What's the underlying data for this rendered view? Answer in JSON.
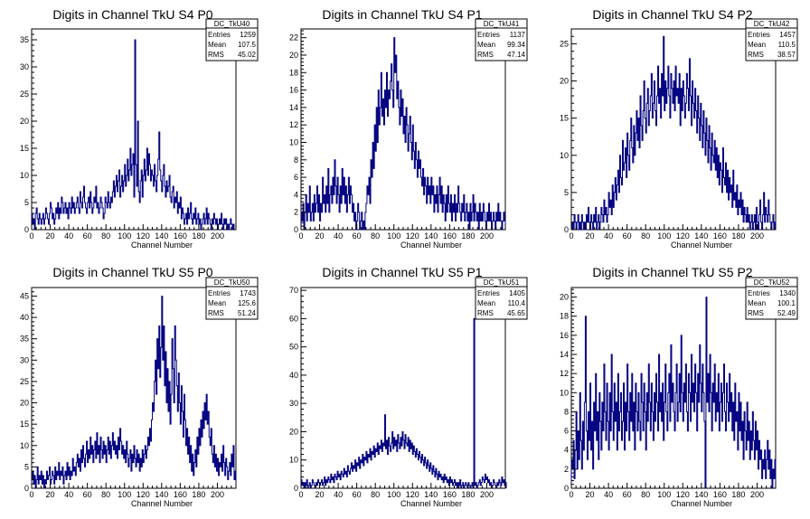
{
  "canvas_background": "#ffffff",
  "hist_color": "#000080",
  "chart_data": [
    {
      "type": "bar",
      "title": "Digits in Channel TkU S4 P0",
      "xlabel": "Channel Number",
      "xlim": [
        0,
        220
      ],
      "ylim": [
        0,
        37
      ],
      "xticks": [
        0,
        20,
        40,
        60,
        80,
        100,
        120,
        140,
        160,
        180,
        200
      ],
      "yticks": [
        0,
        5,
        10,
        15,
        20,
        25,
        30,
        35
      ],
      "stats": {
        "name": "DC_TkU40",
        "entries_label": "Entries",
        "entries": "1259",
        "mean_label": "Mean",
        "mean": "107.5",
        "rms_label": "RMS",
        "rms": "45.02"
      },
      "bin_width": 1,
      "values": [
        3,
        1,
        2,
        0,
        3,
        4,
        2,
        1,
        3,
        2,
        1,
        2,
        3,
        1,
        2,
        4,
        3,
        2,
        1,
        3,
        5,
        4,
        2,
        3,
        1,
        2,
        4,
        3,
        5,
        2,
        4,
        3,
        6,
        5,
        3,
        4,
        5,
        3,
        4,
        2,
        5,
        4,
        3,
        6,
        4,
        5,
        3,
        4,
        5,
        6,
        4,
        3,
        7,
        5,
        4,
        6,
        8,
        5,
        4,
        3,
        5,
        6,
        4,
        7,
        5,
        3,
        4,
        6,
        5,
        8,
        4,
        5,
        3,
        4,
        6,
        5,
        4,
        2,
        3,
        6,
        5,
        4,
        7,
        5,
        4,
        6,
        5,
        7,
        9,
        6,
        8,
        10,
        7,
        9,
        11,
        6,
        8,
        10,
        7,
        9,
        12,
        8,
        10,
        13,
        9,
        11,
        15,
        10,
        12,
        14,
        6,
        35,
        12,
        8,
        20,
        7,
        5,
        9,
        11,
        6,
        10,
        13,
        9,
        11,
        15,
        10,
        14,
        12,
        9,
        11,
        10,
        8,
        12,
        9,
        7,
        10,
        13,
        18,
        11,
        9,
        7,
        10,
        12,
        8,
        6,
        9,
        7,
        8,
        10,
        6,
        5,
        7,
        8,
        4,
        6,
        5,
        7,
        3,
        5,
        4,
        6,
        2,
        4,
        3,
        1,
        2,
        3,
        1,
        4,
        2,
        3,
        5,
        2,
        1,
        3,
        2,
        4,
        1,
        2,
        3,
        1,
        2,
        0,
        1,
        2,
        3,
        1,
        2,
        4,
        1,
        3,
        2,
        1,
        0,
        2,
        1,
        3,
        2,
        1,
        2,
        0,
        1,
        2,
        1,
        3,
        1,
        0,
        2,
        1,
        2,
        0,
        1,
        0,
        1,
        2,
        1,
        0,
        1
      ]
    },
    {
      "type": "bar",
      "title": "Digits in Channel TkU S4 P1",
      "xlabel": "Channel Number",
      "xlim": [
        0,
        220
      ],
      "ylim": [
        0,
        23
      ],
      "xticks": [
        0,
        20,
        40,
        60,
        80,
        100,
        120,
        140,
        160,
        180,
        200
      ],
      "yticks": [
        0,
        2,
        4,
        6,
        8,
        10,
        12,
        14,
        16,
        18,
        20,
        22
      ],
      "stats": {
        "name": "DC_TkU41",
        "entries_label": "Entries",
        "entries": "1137",
        "mean_label": "Mean",
        "mean": "99.34",
        "rms_label": "RMS",
        "rms": "47.14"
      },
      "bin_width": 1,
      "values": [
        2,
        1,
        3,
        0,
        2,
        4,
        1,
        3,
        2,
        5,
        1,
        2,
        3,
        1,
        4,
        2,
        3,
        5,
        2,
        4,
        1,
        3,
        2,
        6,
        3,
        4,
        2,
        5,
        3,
        7,
        2,
        4,
        5,
        3,
        6,
        4,
        8,
        5,
        3,
        6,
        4,
        2,
        5,
        3,
        7,
        4,
        6,
        3,
        5,
        2,
        4,
        6,
        3,
        5,
        4,
        2,
        3,
        1,
        2,
        0,
        1,
        3,
        2,
        0,
        1,
        2,
        0,
        1,
        0,
        2,
        3,
        5,
        4,
        6,
        3,
        8,
        6,
        10,
        7,
        12,
        9,
        14,
        10,
        16,
        12,
        14,
        18,
        13,
        15,
        12,
        16,
        14,
        18,
        13,
        16,
        15,
        17,
        19,
        16,
        14,
        22,
        18,
        20,
        15,
        17,
        14,
        12,
        16,
        13,
        15,
        11,
        13,
        10,
        14,
        12,
        9,
        11,
        13,
        10,
        8,
        12,
        9,
        7,
        10,
        8,
        6,
        9,
        7,
        8,
        6,
        5,
        7,
        4,
        6,
        5,
        3,
        6,
        4,
        5,
        3,
        6,
        4,
        5,
        2,
        4,
        3,
        5,
        2,
        4,
        6,
        3,
        5,
        2,
        4,
        3,
        1,
        4,
        2,
        5,
        3,
        2,
        4,
        1,
        3,
        2,
        4,
        1,
        3,
        2,
        5,
        3,
        2,
        1,
        3,
        2,
        4,
        1,
        2,
        3,
        1,
        2,
        0,
        3,
        1,
        2,
        4,
        1,
        3,
        2,
        1,
        2,
        0,
        3,
        1,
        2,
        1,
        3,
        2,
        1,
        0,
        2,
        1,
        3,
        1,
        2,
        0,
        1,
        2,
        1,
        0,
        2,
        1,
        3,
        1,
        2,
        1,
        0,
        1,
        2,
        1
      ]
    },
    {
      "type": "bar",
      "title": "Digits in Channel TkU S4 P2",
      "xlabel": "Channel Number",
      "xlim": [
        0,
        220
      ],
      "ylim": [
        0,
        27
      ],
      "xticks": [
        0,
        20,
        40,
        60,
        80,
        100,
        120,
        140,
        160,
        180,
        200
      ],
      "yticks": [
        0,
        5,
        10,
        15,
        20,
        25
      ],
      "stats": {
        "name": "DC_TkU42",
        "entries_label": "Entries",
        "entries": "1457",
        "mean_label": "Mean",
        "mean": "110.5",
        "rms_label": "RMS",
        "rms": "38.57"
      },
      "bin_width": 1,
      "values": [
        0,
        1,
        0,
        2,
        1,
        0,
        1,
        2,
        0,
        1,
        0,
        2,
        1,
        0,
        1,
        0,
        2,
        1,
        3,
        1,
        0,
        2,
        1,
        0,
        2,
        1,
        3,
        0,
        1,
        2,
        0,
        1,
        3,
        2,
        1,
        4,
        2,
        3,
        1,
        2,
        5,
        3,
        4,
        2,
        6,
        3,
        5,
        7,
        4,
        6,
        8,
        5,
        10,
        7,
        6,
        12,
        8,
        9,
        11,
        7,
        13,
        10,
        8,
        12,
        15,
        11,
        9,
        14,
        10,
        13,
        16,
        12,
        15,
        11,
        18,
        14,
        12,
        16,
        20,
        15,
        13,
        17,
        19,
        14,
        16,
        18,
        21,
        15,
        17,
        20,
        16,
        14,
        18,
        22,
        17,
        19,
        15,
        21,
        18,
        26,
        16,
        20,
        17,
        19,
        22,
        18,
        15,
        21,
        19,
        17,
        20,
        16,
        22,
        18,
        19,
        17,
        21,
        14,
        19,
        16,
        20,
        18,
        15,
        17,
        21,
        19,
        16,
        23,
        18,
        14,
        20,
        17,
        15,
        19,
        16,
        13,
        18,
        15,
        12,
        17,
        14,
        11,
        16,
        13,
        10,
        15,
        12,
        9,
        14,
        11,
        8,
        13,
        10,
        9,
        12,
        8,
        11,
        7,
        10,
        6,
        9,
        8,
        5,
        11,
        7,
        6,
        9,
        5,
        8,
        4,
        7,
        5,
        6,
        3,
        8,
        4,
        5,
        3,
        6,
        2,
        4,
        3,
        5,
        2,
        4,
        1,
        3,
        2,
        1,
        3,
        1,
        2,
        0,
        1,
        2,
        0,
        1,
        2,
        0,
        3,
        1,
        0,
        2,
        4,
        1,
        0,
        2,
        5,
        1,
        3,
        2,
        1,
        4,
        2,
        1,
        0,
        1,
        2,
        0,
        1
      ]
    },
    {
      "type": "bar",
      "title": "Digits in Channel TkU S5 P0",
      "xlabel": "Channel Number",
      "xlim": [
        0,
        220
      ],
      "ylim": [
        0,
        47
      ],
      "xticks": [
        0,
        20,
        40,
        60,
        80,
        100,
        120,
        140,
        160,
        180,
        200
      ],
      "yticks": [
        0,
        5,
        10,
        15,
        20,
        25,
        30,
        35,
        40,
        45
      ],
      "stats": {
        "name": "DC_TkU50",
        "entries_label": "Entries",
        "entries": "1743",
        "mean_label": "Mean",
        "mean": "125.6",
        "rms_label": "RMS",
        "rms": "51.24"
      },
      "bin_width": 1,
      "values": [
        2,
        4,
        1,
        3,
        0,
        2,
        5,
        1,
        3,
        2,
        4,
        1,
        3,
        0,
        2,
        1,
        4,
        2,
        3,
        5,
        1,
        2,
        4,
        3,
        1,
        5,
        2,
        4,
        3,
        6,
        2,
        4,
        3,
        5,
        1,
        3,
        4,
        2,
        6,
        3,
        5,
        2,
        4,
        3,
        7,
        4,
        5,
        3,
        6,
        8,
        5,
        7,
        4,
        9,
        6,
        10,
        7,
        5,
        8,
        11,
        6,
        9,
        7,
        12,
        8,
        10,
        6,
        9,
        11,
        7,
        13,
        8,
        10,
        6,
        12,
        9,
        7,
        11,
        8,
        10,
        6,
        9,
        12,
        8,
        11,
        7,
        10,
        13,
        9,
        11,
        8,
        10,
        7,
        12,
        9,
        14,
        11,
        8,
        10,
        7,
        9,
        6,
        11,
        8,
        5,
        7,
        9,
        4,
        8,
        6,
        10,
        7,
        5,
        9,
        6,
        8,
        4,
        7,
        5,
        9,
        6,
        8,
        10,
        7,
        9,
        12,
        10,
        14,
        11,
        16,
        20,
        18,
        25,
        30,
        22,
        35,
        28,
        38,
        26,
        33,
        45,
        30,
        38,
        24,
        32,
        20,
        28,
        18,
        25,
        15,
        22,
        35,
        28,
        20,
        38,
        30,
        24,
        18,
        27,
        20,
        15,
        24,
        18,
        12,
        22,
        16,
        10,
        14,
        8,
        12,
        6,
        10,
        4,
        8,
        3,
        6,
        9,
        5,
        12,
        8,
        14,
        10,
        16,
        12,
        18,
        14,
        20,
        16,
        22,
        15,
        18,
        12,
        10,
        14,
        8,
        6,
        10,
        5,
        8,
        4,
        7,
        3,
        6,
        5,
        8,
        4,
        10,
        6,
        3,
        7,
        5,
        2,
        4,
        6,
        3,
        8,
        5,
        10,
        2,
        4
      ]
    },
    {
      "type": "bar",
      "title": "Digits in Channel TkU S5 P1",
      "xlabel": "Channel Number",
      "xlim": [
        0,
        220
      ],
      "ylim": [
        0,
        71
      ],
      "xticks": [
        0,
        20,
        40,
        60,
        80,
        100,
        120,
        140,
        160,
        180,
        200
      ],
      "yticks": [
        0,
        10,
        20,
        30,
        40,
        50,
        60,
        70
      ],
      "stats": {
        "name": "DC_TkU51",
        "entries_label": "Entries",
        "entries": "1405",
        "mean_label": "Mean",
        "mean": "110.4",
        "rms_label": "RMS",
        "rms": "45.65"
      },
      "bin_width": 1,
      "values": [
        3,
        1,
        2,
        0,
        2,
        1,
        3,
        0,
        1,
        2,
        0,
        1,
        3,
        2,
        1,
        0,
        2,
        1,
        3,
        2,
        1,
        2,
        3,
        1,
        2,
        4,
        1,
        3,
        2,
        4,
        3,
        2,
        5,
        3,
        4,
        2,
        5,
        4,
        3,
        6,
        4,
        5,
        3,
        6,
        5,
        4,
        7,
        5,
        6,
        4,
        8,
        6,
        5,
        7,
        9,
        6,
        8,
        7,
        10,
        6,
        9,
        8,
        11,
        7,
        10,
        9,
        12,
        8,
        11,
        10,
        13,
        9,
        12,
        11,
        14,
        10,
        13,
        12,
        15,
        11,
        14,
        13,
        16,
        12,
        15,
        14,
        17,
        13,
        16,
        15,
        26,
        14,
        17,
        12,
        18,
        15,
        13,
        16,
        20,
        14,
        18,
        15,
        17,
        13,
        19,
        16,
        14,
        18,
        15,
        20,
        17,
        14,
        19,
        16,
        15,
        18,
        13,
        17,
        14,
        16,
        12,
        15,
        13,
        11,
        14,
        12,
        10,
        13,
        11,
        9,
        12,
        10,
        8,
        11,
        9,
        7,
        10,
        8,
        6,
        9,
        7,
        5,
        8,
        6,
        4,
        7,
        5,
        3,
        6,
        4,
        5,
        3,
        4,
        2,
        5,
        3,
        4,
        2,
        3,
        1,
        4,
        2,
        3,
        1,
        2,
        3,
        1,
        2,
        0,
        2,
        1,
        3,
        0,
        1,
        2,
        0,
        1,
        2,
        1,
        0,
        2,
        1,
        0,
        1,
        2,
        0,
        60,
        1,
        2,
        0,
        1,
        2,
        3,
        1,
        2,
        4,
        3,
        2,
        5,
        3,
        4,
        2,
        3,
        1,
        2,
        0,
        1,
        3,
        2,
        1,
        0,
        2,
        1,
        3,
        2,
        1,
        4,
        2,
        3,
        1,
        2
      ]
    },
    {
      "type": "bar",
      "title": "Digits in Channel TkU S5 P2",
      "xlabel": "Channel Number",
      "xlim": [
        0,
        220
      ],
      "ylim": [
        0,
        21
      ],
      "xticks": [
        0,
        20,
        40,
        60,
        80,
        100,
        120,
        140,
        160,
        180,
        200
      ],
      "yticks": [
        0,
        2,
        4,
        6,
        8,
        10,
        12,
        14,
        16,
        18,
        20
      ],
      "stats": {
        "name": "DC_TkU52",
        "entries_label": "Entries",
        "entries": "1340",
        "mean_label": "Mean",
        "mean": "100.1",
        "rms_label": "RMS",
        "rms": "52.49"
      },
      "bin_width": 1,
      "values": [
        3,
        2,
        5,
        1,
        4,
        8,
        2,
        6,
        3,
        10,
        5,
        2,
        7,
        4,
        9,
        18,
        6,
        3,
        8,
        5,
        11,
        4,
        7,
        2,
        9,
        6,
        12,
        5,
        8,
        3,
        10,
        7,
        4,
        9,
        6,
        13,
        8,
        5,
        11,
        7,
        4,
        10,
        6,
        14,
        8,
        5,
        11,
        7,
        9,
        4,
        12,
        6,
        8,
        10,
        5,
        7,
        11,
        4,
        9,
        6,
        13,
        8,
        5,
        10,
        7,
        12,
        6,
        9,
        4,
        11,
        8,
        6,
        10,
        7,
        5,
        12,
        9,
        6,
        11,
        8,
        4,
        10,
        7,
        13,
        9,
        6,
        11,
        8,
        5,
        10,
        7,
        12,
        9,
        6,
        14,
        8,
        10,
        7,
        11,
        5,
        9,
        13,
        8,
        6,
        10,
        12,
        7,
        15,
        9,
        11,
        8,
        6,
        10,
        13,
        7,
        9,
        12,
        8,
        16,
        10,
        7,
        11,
        9,
        13,
        8,
        6,
        12,
        10,
        7,
        14,
        9,
        11,
        8,
        13,
        10,
        6,
        12,
        9,
        15,
        11,
        8,
        13,
        10,
        7,
        0,
        20,
        9,
        12,
        8,
        14,
        10,
        6,
        11,
        9,
        13,
        7,
        10,
        8,
        12,
        6,
        9,
        11,
        7,
        10,
        13,
        8,
        6,
        11,
        9,
        7,
        12,
        8,
        10,
        6,
        9,
        5,
        11,
        7,
        8,
        4,
        10,
        6,
        9,
        5,
        7,
        3,
        8,
        6,
        4,
        9,
        5,
        7,
        3,
        6,
        4,
        8,
        5,
        3,
        7,
        4,
        6,
        2,
        5,
        3,
        4,
        1,
        3,
        2,
        4,
        1,
        3,
        5,
        2,
        4,
        1,
        3,
        0,
        2,
        1,
        3
      ]
    }
  ]
}
